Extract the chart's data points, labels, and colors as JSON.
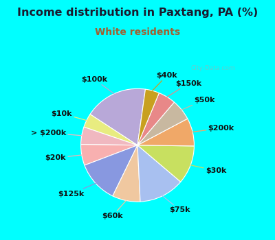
{
  "title": "Income distribution in Paxtang, PA (%)",
  "subtitle": "White residents",
  "watermark": "City-Data.com",
  "background_outer": "#00FFFF",
  "title_color": "#1a1a2e",
  "subtitle_color": "#a06030",
  "labels": [
    "$100k",
    "$10k",
    "> $200k",
    "$20k",
    "$125k",
    "$60k",
    "$75k",
    "$30k",
    "$200k",
    "$50k",
    "$150k",
    "$40k"
  ],
  "values": [
    18,
    4,
    5,
    6,
    12,
    8,
    13,
    11,
    8,
    6,
    5,
    4
  ],
  "colors": [
    "#b8a8d8",
    "#e8ec80",
    "#f0b8c0",
    "#f8b0b0",
    "#8898e0",
    "#f0c8a0",
    "#a8c0f0",
    "#c8e060",
    "#f0a868",
    "#c8b8a0",
    "#e88888",
    "#c8a020"
  ],
  "title_fontsize": 11.5,
  "subtitle_fontsize": 10,
  "label_fontsize": 8,
  "startangle": 82
}
